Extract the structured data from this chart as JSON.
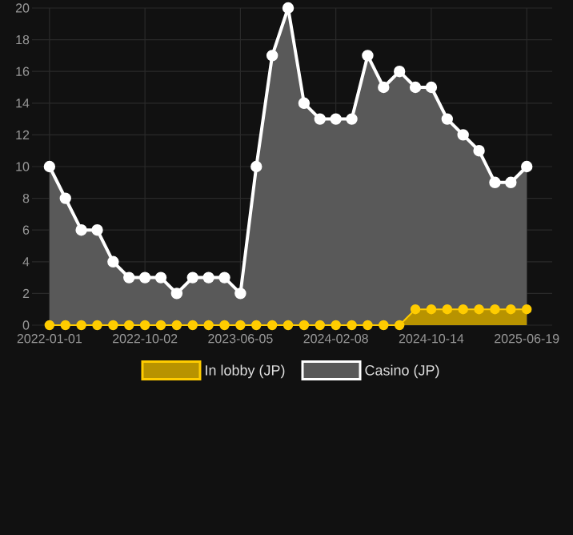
{
  "chart_data": {
    "type": "area",
    "categories": [
      "2022-01-01",
      null,
      null,
      null,
      null,
      null,
      "2022-10-02",
      null,
      null,
      null,
      null,
      null,
      "2023-06-05",
      null,
      null,
      null,
      null,
      null,
      "2024-02-08",
      null,
      null,
      null,
      null,
      null,
      "2024-10-14",
      null,
      null,
      null,
      null,
      null,
      "2025-06-19"
    ],
    "series": [
      {
        "name": "In lobby (JP)",
        "color": "#ffcc00",
        "values": [
          0,
          0,
          0,
          0,
          0,
          0,
          0,
          0,
          0,
          0,
          0,
          0,
          0,
          0,
          0,
          0,
          0,
          0,
          0,
          0,
          0,
          0,
          0,
          1,
          1,
          1,
          1,
          1,
          1,
          1,
          1
        ]
      },
      {
        "name": "Casino (JP)",
        "color": "#ffffff",
        "values": [
          10,
          8,
          6,
          6,
          4,
          3,
          3,
          3,
          2,
          3,
          3,
          3,
          2,
          10,
          17,
          20,
          14,
          13,
          13,
          13,
          17,
          15,
          16,
          15,
          15,
          13,
          12,
          11,
          9,
          9,
          10
        ]
      }
    ],
    "ylim": [
      0,
      20
    ],
    "yticks": [
      0,
      2,
      4,
      6,
      8,
      10,
      12,
      14,
      16,
      18,
      20
    ],
    "grid": true,
    "legend": "bottom",
    "marker": "circle",
    "line_style": "solid"
  }
}
